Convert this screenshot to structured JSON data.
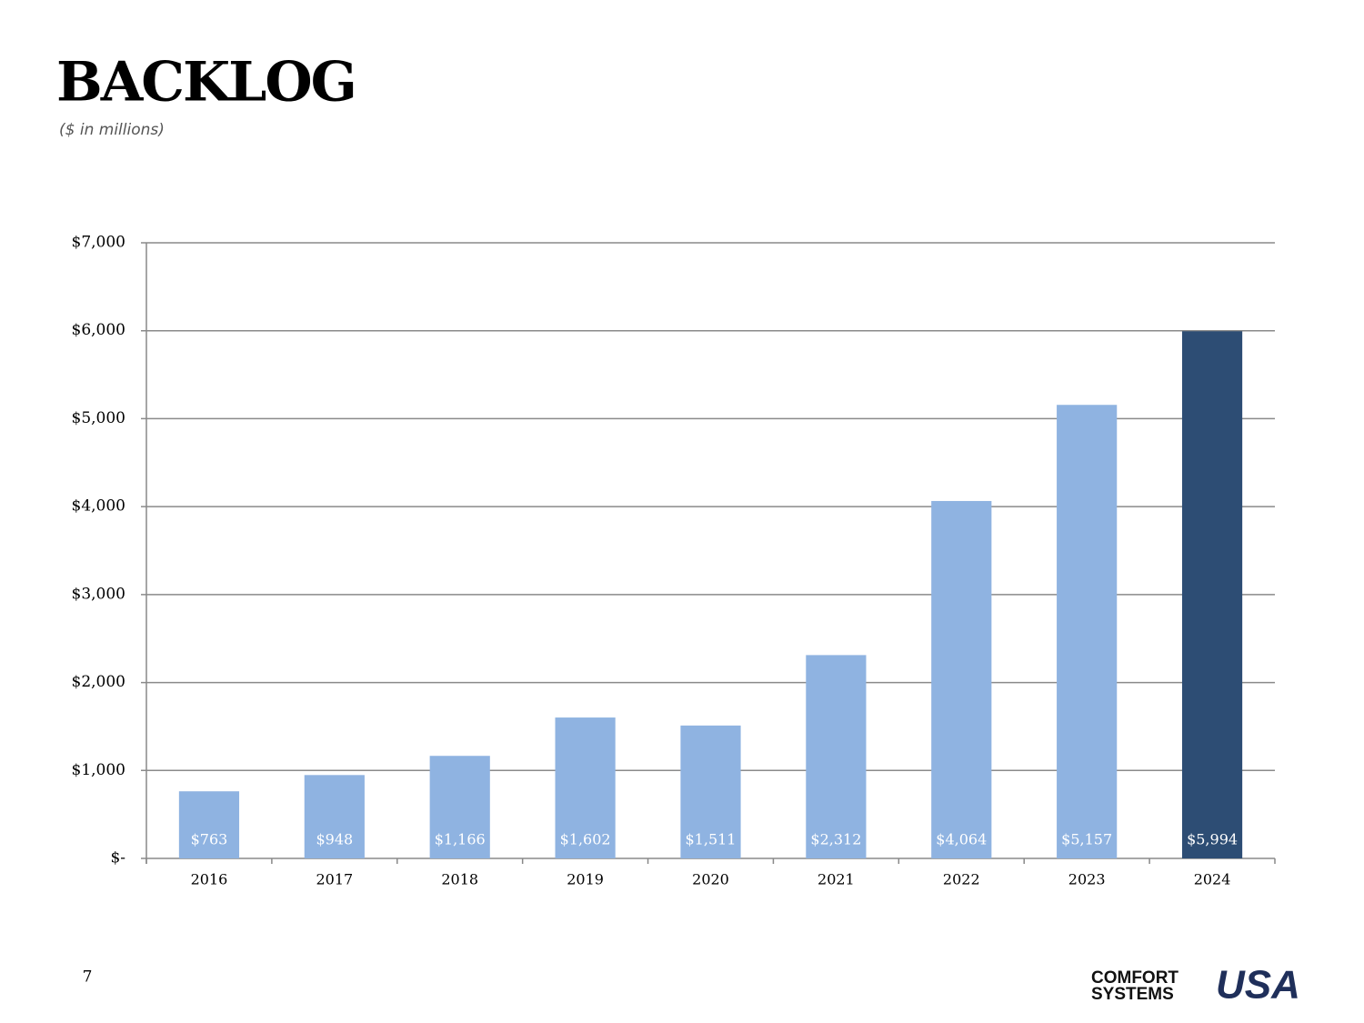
{
  "chart_data": {
    "type": "bar",
    "title": "BACKLOG",
    "subtitle": "($ in millions)",
    "categories": [
      "2016",
      "2017",
      "2018",
      "2019",
      "2020",
      "2021",
      "2022",
      "2023",
      "2024"
    ],
    "values": [
      763,
      948,
      1166,
      1602,
      1511,
      2312,
      4064,
      5157,
      5994
    ],
    "value_labels": [
      "$763",
      "$948",
      "$1,166",
      "$1,602",
      "$1,511",
      "$2,312",
      "$4,064",
      "$5,157",
      "$5,994"
    ],
    "colors": [
      "#8fb3e1",
      "#8fb3e1",
      "#8fb3e1",
      "#8fb3e1",
      "#8fb3e1",
      "#8fb3e1",
      "#8fb3e1",
      "#8fb3e1",
      "#2d4d74"
    ],
    "ylim": [
      0,
      7000
    ],
    "yticks": [
      {
        "value": 0,
        "label": "$-"
      },
      {
        "value": 1000,
        "label": "$1,000"
      },
      {
        "value": 2000,
        "label": "$2,000"
      },
      {
        "value": 3000,
        "label": "$3,000"
      },
      {
        "value": 4000,
        "label": "$4,000"
      },
      {
        "value": 5000,
        "label": "$5,000"
      },
      {
        "value": 6000,
        "label": "$6,000"
      },
      {
        "value": 7000,
        "label": "$7,000"
      }
    ],
    "grid": true
  },
  "page_number": "7",
  "logo": {
    "line1": "COMFORT",
    "line2": "SYSTEMS",
    "mark": "USA"
  }
}
